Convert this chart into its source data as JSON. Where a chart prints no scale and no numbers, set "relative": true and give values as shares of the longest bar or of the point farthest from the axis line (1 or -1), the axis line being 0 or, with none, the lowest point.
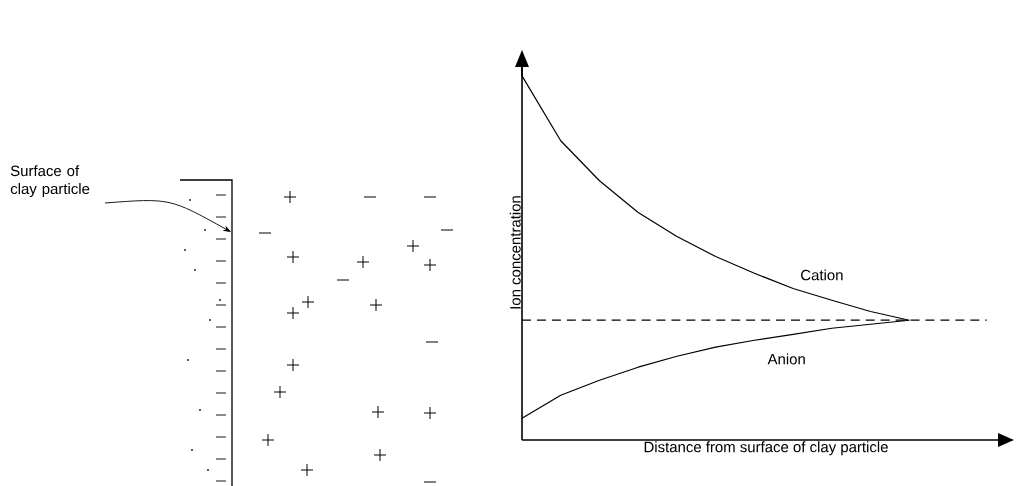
{
  "chart_data": {
    "type": "line",
    "relative": true,
    "xlabel": "Distance from surface of clay particle",
    "ylabel": "Ion concentration",
    "categories": [
      null,
      null,
      null,
      null,
      null,
      null,
      null,
      null,
      null,
      null,
      null,
      null,
      null
    ],
    "series": [
      {
        "name": "Cation",
        "color": "#000000",
        "values": [
          1,
          0.822,
          0.712,
          0.625,
          0.559,
          0.504,
          0.458,
          0.416,
          0.384,
          0.353,
          0.329,
          null,
          null
        ]
      },
      {
        "name": "Anion",
        "color": "#000000",
        "values": [
          0.06,
          0.123,
          0.164,
          0.2,
          0.23,
          0.255,
          0.274,
          0.29,
          0.307,
          0.318,
          0.329,
          null,
          null
        ]
      }
    ],
    "ref_lines": [
      {
        "axis": "y",
        "value": 0.329,
        "line_style": "dashed",
        "color": "#000000"
      }
    ],
    "annotations": [
      "Surface of clay particle"
    ],
    "legend": false,
    "marker": "none",
    "line_style": "solid"
  }
}
